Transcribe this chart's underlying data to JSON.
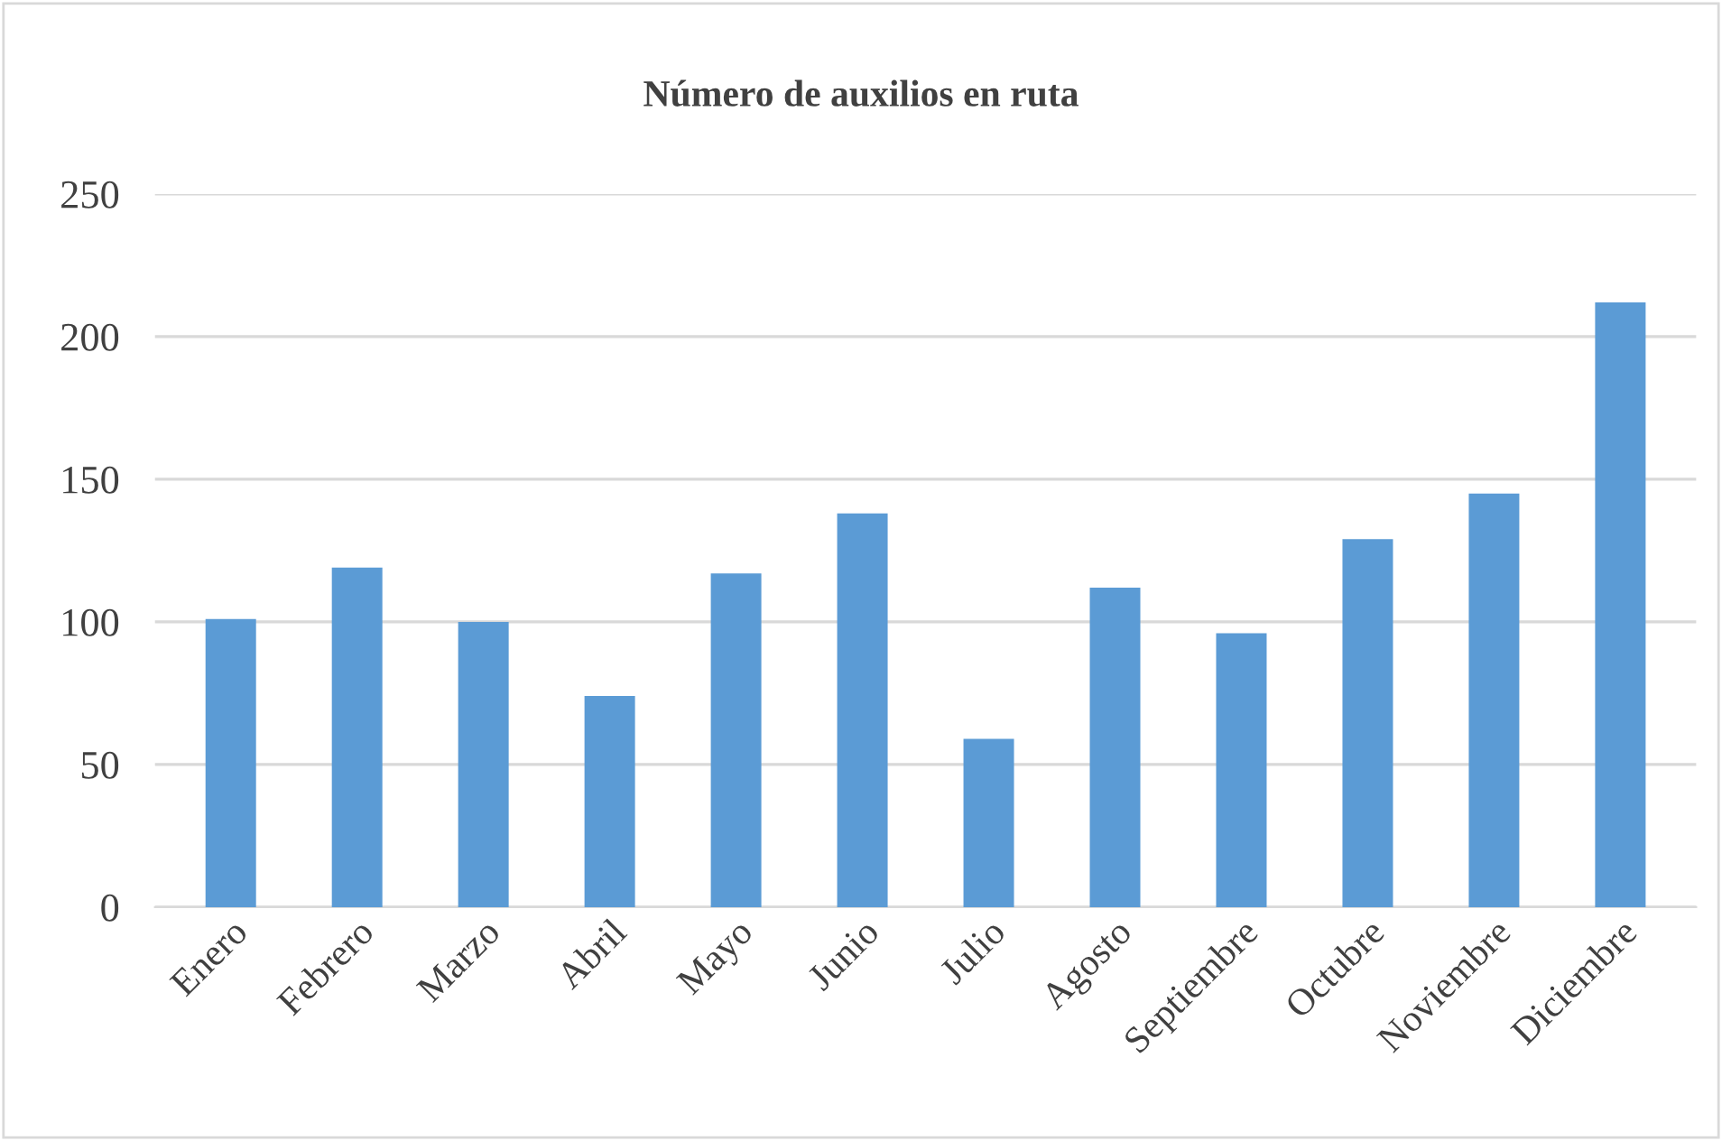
{
  "chart_data": {
    "type": "bar",
    "title": "Número de auxilios en ruta",
    "categories": [
      "Enero",
      "Febrero",
      "Marzo",
      "Abril",
      "Mayo",
      "Junio",
      "Julio",
      "Agosto",
      "Septiembre",
      "Octubre",
      "Noviembre",
      "Diciembre"
    ],
    "values": [
      101,
      119,
      100,
      74,
      117,
      138,
      59,
      112,
      96,
      129,
      145,
      212
    ],
    "color": "#5b9bd5",
    "ylim": [
      0,
      250
    ],
    "yticks": [
      0,
      50,
      100,
      150,
      200,
      250
    ],
    "grid": "y",
    "legend": false
  }
}
